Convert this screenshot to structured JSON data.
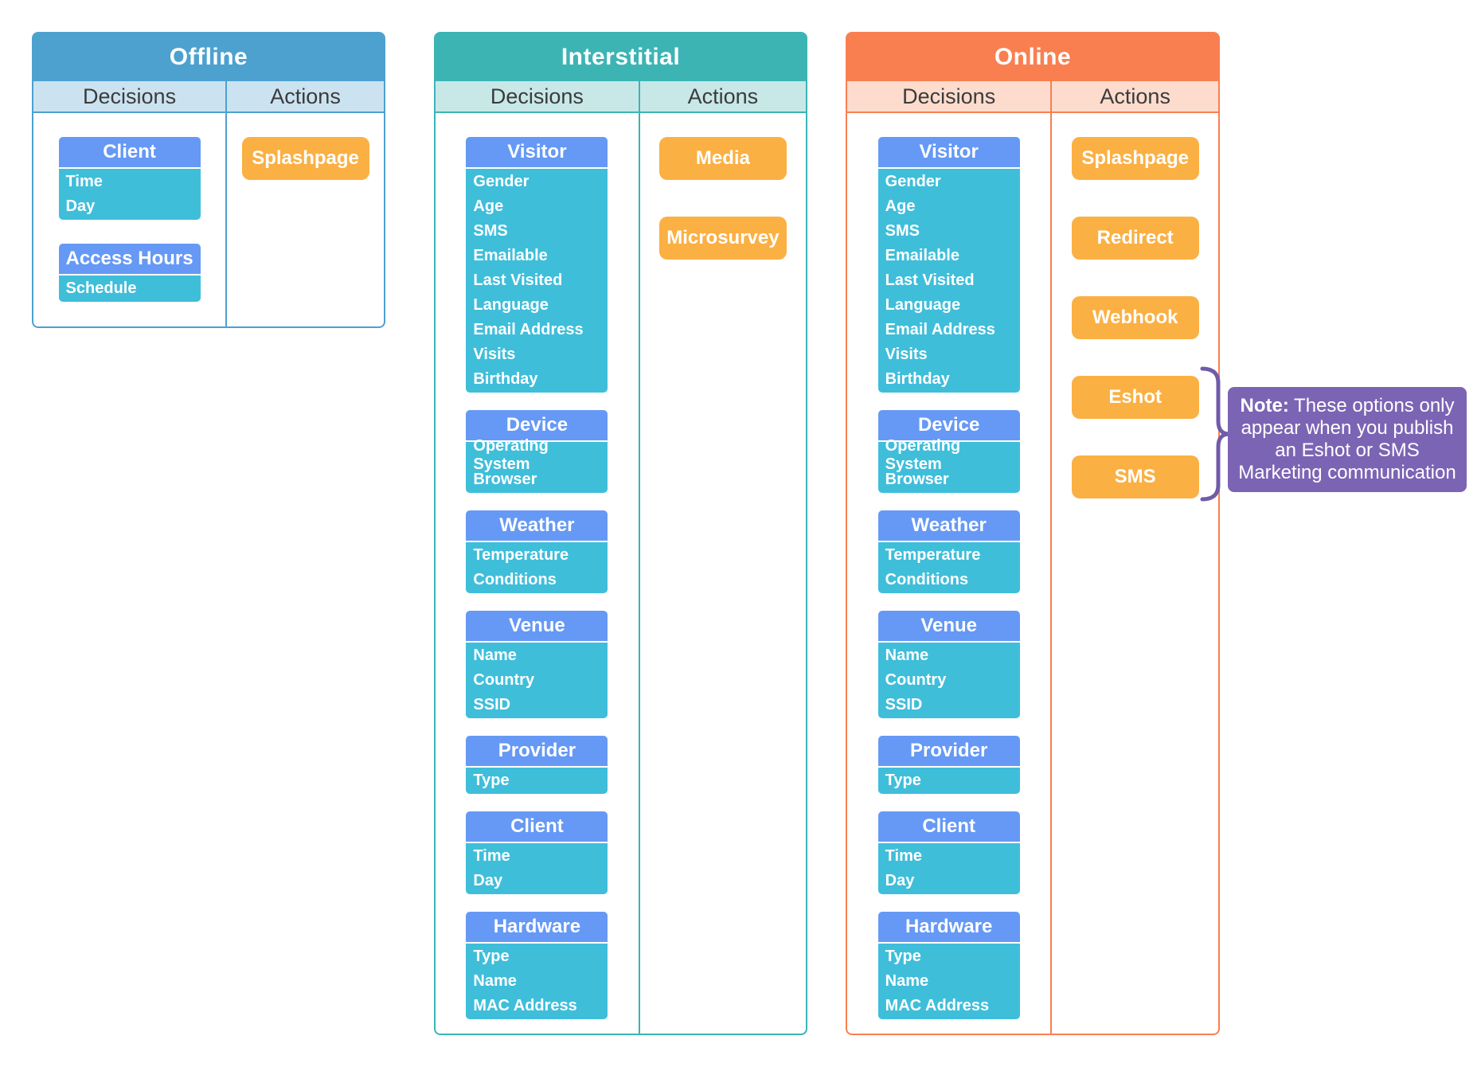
{
  "colors": {
    "group_header": "#6699F5",
    "group_body": "#3FBEDA",
    "action_button": "#FBB043",
    "note_bg": "#7C64B4",
    "bracket": "#6F5BA8"
  },
  "panels": [
    {
      "id": "offline",
      "title": "Offline",
      "decisions_label": "Decisions",
      "actions_label": "Actions",
      "accent": "#4DA1CF",
      "header_bg": "#CBE2F1",
      "groups": [
        {
          "name": "Client",
          "items": [
            "Time",
            "Day"
          ]
        },
        {
          "name": "Access Hours",
          "items": [
            "Schedule"
          ]
        }
      ],
      "actions": [
        "Splashpage"
      ]
    },
    {
      "id": "interstitial",
      "title": "Interstitial",
      "decisions_label": "Decisions",
      "actions_label": "Actions",
      "accent": "#3CB4B4",
      "header_bg": "#C8E8E8",
      "groups": [
        {
          "name": "Visitor",
          "items": [
            "Gender",
            "Age",
            "SMS",
            "Emailable",
            "Last Visited",
            "Language",
            "Email Address",
            "Visits",
            "Birthday"
          ]
        },
        {
          "name": "Device",
          "items": [
            "Operating System",
            "Browser"
          ]
        },
        {
          "name": "Weather",
          "items": [
            "Temperature",
            "Conditions"
          ]
        },
        {
          "name": "Venue",
          "items": [
            "Name",
            "Country",
            "SSID"
          ]
        },
        {
          "name": "Provider",
          "items": [
            "Type"
          ]
        },
        {
          "name": "Client",
          "items": [
            "Time",
            "Day"
          ]
        },
        {
          "name": "Hardware",
          "items": [
            "Type",
            "Name",
            "MAC Address"
          ]
        }
      ],
      "actions": [
        "Media",
        "Microsurvey"
      ]
    },
    {
      "id": "online",
      "title": "Online",
      "decisions_label": "Decisions",
      "actions_label": "Actions",
      "accent": "#F97F50",
      "header_bg": "#FDDCCD",
      "groups": [
        {
          "name": "Visitor",
          "items": [
            "Gender",
            "Age",
            "SMS",
            "Emailable",
            "Last Visited",
            "Language",
            "Email Address",
            "Visits",
            "Birthday"
          ]
        },
        {
          "name": "Device",
          "items": [
            "Operating System",
            "Browser"
          ]
        },
        {
          "name": "Weather",
          "items": [
            "Temperature",
            "Conditions"
          ]
        },
        {
          "name": "Venue",
          "items": [
            "Name",
            "Country",
            "SSID"
          ]
        },
        {
          "name": "Provider",
          "items": [
            "Type"
          ]
        },
        {
          "name": "Client",
          "items": [
            "Time",
            "Day"
          ]
        },
        {
          "name": "Hardware",
          "items": [
            "Type",
            "Name",
            "MAC Address"
          ]
        }
      ],
      "actions": [
        "Splashpage",
        "Redirect",
        "Webhook",
        "Eshot",
        "SMS"
      ]
    }
  ],
  "note": {
    "label": "Note:",
    "text": "These options only appear when you publish an Eshot or SMS Marketing communication"
  }
}
